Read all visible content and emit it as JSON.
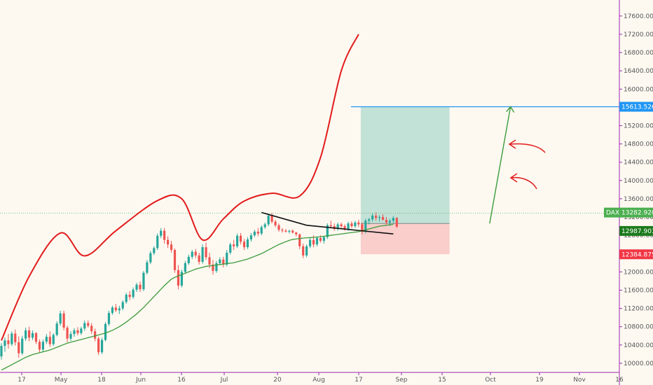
{
  "chart_data": {
    "type": "candlestick",
    "symbol": "DAX",
    "yaxis": {
      "range": [
        9800,
        17950
      ],
      "ticks": [
        10000,
        10400,
        10800,
        11200,
        11600,
        12000,
        12400,
        12800,
        13200,
        13600,
        14000,
        14400,
        14800,
        15200,
        15600,
        16000,
        16400,
        16800,
        17200,
        17600
      ],
      "tick_labels": [
        "10000.000",
        "10400.000",
        "10800.000",
        "11200.000",
        "11600.000",
        "12000.000",
        "12400.000",
        "12800.000",
        "13200.000",
        "13600.000",
        "14000.000",
        "14400.000",
        "14800.000",
        "15200.000",
        "15600.000",
        "16000.000",
        "16400.000",
        "16800.000",
        "17200.000",
        "17600.000"
      ]
    },
    "xaxis": {
      "ticks": [
        "17",
        "May",
        "18",
        "Jun",
        "16",
        "Jul",
        "20",
        "Aug",
        "17",
        "Sep",
        "15",
        "Oct",
        "19",
        "Nov",
        "16"
      ]
    },
    "grid": false,
    "candles": [
      [
        10150,
        10440,
        10080,
        10380
      ],
      [
        10380,
        10560,
        10250,
        10500
      ],
      [
        10500,
        10640,
        10320,
        10420
      ],
      [
        10420,
        10700,
        10380,
        10650
      ],
      [
        10650,
        10740,
        10390,
        10460
      ],
      [
        10460,
        10590,
        10120,
        10220
      ],
      [
        10220,
        10600,
        10180,
        10540
      ],
      [
        10540,
        10780,
        10490,
        10720
      ],
      [
        10720,
        10800,
        10480,
        10560
      ],
      [
        10560,
        10720,
        10510,
        10660
      ],
      [
        10660,
        10680,
        10420,
        10470
      ],
      [
        10470,
        10520,
        10240,
        10300
      ],
      [
        10300,
        10520,
        10260,
        10470
      ],
      [
        10470,
        10640,
        10420,
        10580
      ],
      [
        10580,
        10700,
        10360,
        10420
      ],
      [
        10420,
        10660,
        10380,
        10620
      ],
      [
        10620,
        10920,
        10590,
        10870
      ],
      [
        10870,
        11150,
        10820,
        11090
      ],
      [
        11090,
        11150,
        10720,
        10780
      ],
      [
        10780,
        10820,
        10460,
        10540
      ],
      [
        10540,
        10700,
        10490,
        10640
      ],
      [
        10640,
        10770,
        10580,
        10720
      ],
      [
        10720,
        10790,
        10610,
        10660
      ],
      [
        10660,
        10800,
        10620,
        10760
      ],
      [
        10760,
        10940,
        10710,
        10880
      ],
      [
        10880,
        10940,
        10780,
        10820
      ],
      [
        10820,
        10880,
        10640,
        10700
      ],
      [
        10700,
        10760,
        10480,
        10540
      ],
      [
        10540,
        10580,
        10180,
        10240
      ],
      [
        10240,
        10560,
        10200,
        10510
      ],
      [
        10510,
        10900,
        10480,
        10860
      ],
      [
        10860,
        11150,
        10820,
        11100
      ],
      [
        11100,
        11260,
        11060,
        11220
      ],
      [
        11220,
        11300,
        11120,
        11160
      ],
      [
        11160,
        11260,
        11080,
        11200
      ],
      [
        11200,
        11380,
        11160,
        11340
      ],
      [
        11340,
        11540,
        11300,
        11500
      ],
      [
        11500,
        11580,
        11380,
        11450
      ],
      [
        11450,
        11660,
        11410,
        11610
      ],
      [
        11610,
        11760,
        11560,
        11720
      ],
      [
        11720,
        11790,
        11560,
        11620
      ],
      [
        11620,
        12020,
        11580,
        11980
      ],
      [
        11980,
        12260,
        11940,
        12210
      ],
      [
        12210,
        12460,
        12170,
        12410
      ],
      [
        12410,
        12560,
        12370,
        12520
      ],
      [
        12520,
        12840,
        12480,
        12790
      ],
      [
        12790,
        12960,
        12740,
        12900
      ],
      [
        12900,
        12960,
        12620,
        12700
      ],
      [
        12700,
        12780,
        12520,
        12600
      ],
      [
        12600,
        12680,
        12420,
        12480
      ],
      [
        12480,
        12510,
        11980,
        12040
      ],
      [
        12040,
        12150,
        11620,
        11700
      ],
      [
        11700,
        12050,
        11660,
        12000
      ],
      [
        12000,
        12240,
        11960,
        12190
      ],
      [
        12190,
        12380,
        12150,
        12330
      ],
      [
        12330,
        12480,
        12280,
        12440
      ],
      [
        12440,
        12500,
        12300,
        12360
      ],
      [
        12360,
        12420,
        12160,
        12220
      ],
      [
        12220,
        12600,
        12180,
        12540
      ],
      [
        12540,
        12640,
        12260,
        12320
      ],
      [
        12320,
        12420,
        12080,
        12160
      ],
      [
        12160,
        12260,
        11940,
        12020
      ],
      [
        12020,
        12240,
        11980,
        12190
      ],
      [
        12190,
        12320,
        12150,
        12270
      ],
      [
        12270,
        12330,
        12100,
        12160
      ],
      [
        12160,
        12480,
        12120,
        12420
      ],
      [
        12420,
        12640,
        12380,
        12600
      ],
      [
        12600,
        12700,
        12480,
        12560
      ],
      [
        12560,
        12840,
        12520,
        12790
      ],
      [
        12790,
        12850,
        12600,
        12660
      ],
      [
        12660,
        12720,
        12480,
        12540
      ],
      [
        12540,
        12760,
        12500,
        12710
      ],
      [
        12710,
        12850,
        12660,
        12800
      ],
      [
        12800,
        12920,
        12760,
        12880
      ],
      [
        12880,
        12960,
        12780,
        12840
      ],
      [
        12840,
        13020,
        12800,
        12980
      ],
      [
        12980,
        13080,
        12940,
        13040
      ],
      [
        13040,
        13260,
        13000,
        13230
      ],
      [
        13230,
        13290,
        13060,
        13100
      ],
      [
        13100,
        13140,
        12980,
        13020
      ],
      [
        13020,
        13060,
        12880,
        12920
      ],
      [
        12920,
        12960,
        12860,
        12900
      ],
      [
        12900,
        12940,
        12860,
        12880
      ],
      [
        12880,
        12920,
        12840,
        12900
      ],
      [
        12900,
        12930,
        12840,
        12860
      ],
      [
        12860,
        12880,
        12780,
        12820
      ],
      [
        12820,
        12840,
        12500,
        12560
      ],
      [
        12560,
        12620,
        12300,
        12360
      ],
      [
        12360,
        12600,
        12320,
        12560
      ],
      [
        12560,
        12740,
        12520,
        12700
      ],
      [
        12700,
        12800,
        12540,
        12600
      ],
      [
        12600,
        12780,
        12560,
        12740
      ],
      [
        12740,
        12800,
        12640,
        12680
      ],
      [
        12680,
        12780,
        12620,
        12760
      ],
      [
        12760,
        13060,
        12720,
        13020
      ],
      [
        13020,
        13120,
        12960,
        13000
      ],
      [
        13000,
        13060,
        12900,
        12940
      ],
      [
        12940,
        13080,
        12900,
        13040
      ],
      [
        13040,
        13080,
        12960,
        13000
      ],
      [
        13000,
        13040,
        12900,
        12940
      ],
      [
        12940,
        13100,
        12900,
        13060
      ],
      [
        13060,
        13110,
        12960,
        13000
      ],
      [
        13000,
        13120,
        12960,
        13080
      ],
      [
        13080,
        13140,
        12980,
        13040
      ],
      [
        13040,
        13080,
        12820,
        12880
      ],
      [
        12880,
        13160,
        12840,
        13120
      ],
      [
        13120,
        13180,
        13040,
        13150
      ],
      [
        13150,
        13280,
        13100,
        13230
      ],
      [
        13230,
        13300,
        13120,
        13180
      ],
      [
        13180,
        13240,
        13100,
        13200
      ],
      [
        13200,
        13260,
        13120,
        13140
      ],
      [
        13140,
        13200,
        13040,
        13080
      ],
      [
        13080,
        13160,
        13000,
        13120
      ],
      [
        13120,
        13220,
        13060,
        13180
      ],
      [
        13180,
        13200,
        12960,
        12990
      ]
    ],
    "moving_average": [
      9850,
      9890,
      9930,
      9970,
      10010,
      10050,
      10090,
      10130,
      10160,
      10190,
      10210,
      10230,
      10250,
      10270,
      10290,
      10320,
      10350,
      10380,
      10410,
      10440,
      10460,
      10480,
      10500,
      10520,
      10540,
      10560,
      10580,
      10600,
      10620,
      10640,
      10660,
      10690,
      10720,
      10760,
      10800,
      10850,
      10900,
      10960,
      11020,
      11080,
      11150,
      11220,
      11300,
      11380,
      11460,
      11540,
      11620,
      11700,
      11770,
      11840,
      11880,
      11910,
      11940,
      11970,
      12000,
      12030,
      12060,
      12080,
      12100,
      12120,
      12130,
      12140,
      12150,
      12160,
      12170,
      12180,
      12190,
      12200,
      12220,
      12240,
      12260,
      12280,
      12310,
      12340,
      12370,
      12400,
      12440,
      12480,
      12520,
      12560,
      12600,
      12630,
      12660,
      12690,
      12710,
      12720,
      12730,
      12740,
      12745,
      12750,
      12755,
      12760,
      12770,
      12780,
      12790,
      12800,
      12810,
      12820,
      12830,
      12840,
      12850,
      12860,
      12870,
      12880,
      12900,
      12920,
      12940,
      12960,
      12980,
      13000,
      13010,
      13020,
      13030,
      13040
    ],
    "annotations": {
      "trendline": [
        [
          75,
          13300
        ],
        [
          88,
          13020
        ],
        [
          113,
          12830
        ]
      ],
      "target_line": 15613.526,
      "position": {
        "start": 102,
        "end": 128,
        "entry": 13060,
        "target": 15613.526,
        "stop": 12384.875
      },
      "projection_arrow": {
        "from": [
          143,
          13060
        ],
        "to": [
          147,
          15613.526
        ]
      },
      "curve": [
        [
          0,
          10500
        ],
        [
          8,
          11900
        ],
        [
          17,
          12850
        ],
        [
          24,
          12350
        ],
        [
          33,
          12900
        ],
        [
          45,
          13560
        ],
        [
          52,
          13600
        ],
        [
          58,
          12700
        ],
        [
          64,
          13160
        ],
        [
          70,
          13550
        ],
        [
          78,
          13720
        ],
        [
          86,
          13660
        ],
        [
          92,
          14500
        ],
        [
          98,
          16400
        ],
        [
          103,
          17200
        ]
      ]
    },
    "price_labels": [
      {
        "text": "15613.526",
        "value": 15613.526,
        "color": "#2196f3"
      },
      {
        "text": "13282.920",
        "value": 13282.92,
        "color": "#4caf50",
        "tag": "DAX"
      },
      {
        "text": "12987.903",
        "value": 12987.903,
        "color": "#1b7a1b"
      },
      {
        "text": "12384.875",
        "value": 12384.875,
        "color": "#f23645"
      }
    ],
    "current_price": 13282.92
  },
  "colors": {
    "up": "#26a69a",
    "down": "#ef5350",
    "ma": "#3c9b3c",
    "curve": "#e21b1b",
    "target_line": "#2196f3",
    "profit_zone": "#b7ddd2",
    "loss_zone": "#f8c9c6",
    "axis": "#9c27b0"
  }
}
